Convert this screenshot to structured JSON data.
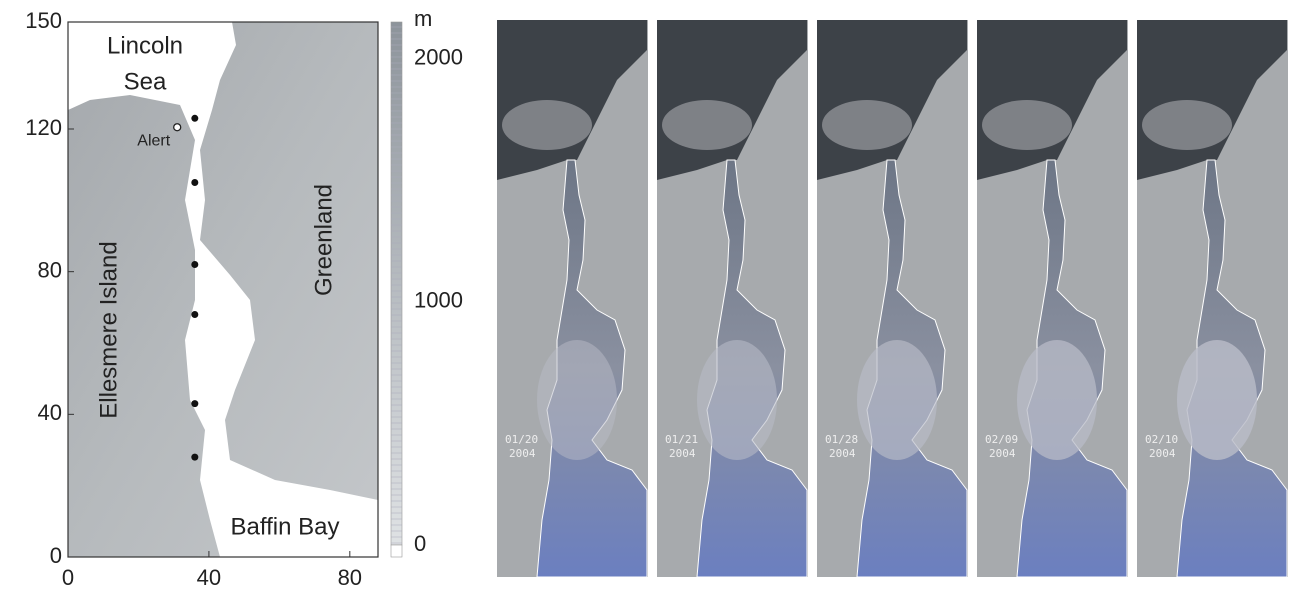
{
  "map": {
    "xlim": [
      0,
      88
    ],
    "ylim": [
      0,
      150
    ],
    "xticks": [
      0,
      40,
      80
    ],
    "yticks": [
      0,
      40,
      80,
      120,
      150
    ],
    "labels": [
      "Lincoln",
      "Sea",
      "Ellesmere Island",
      "Greenland",
      "Baffin Bay"
    ],
    "alert": {
      "label": "Alert",
      "x": 31,
      "y": 120.5
    },
    "stations": {
      "x": [
        36,
        36,
        36,
        36,
        36,
        36
      ],
      "y": [
        123,
        105,
        82,
        68,
        43,
        28
      ]
    }
  },
  "colorbar": {
    "unit": "m",
    "lim": [
      0,
      2150
    ],
    "ticks": [
      0,
      1000,
      2000
    ]
  },
  "panels": [
    {
      "date": "01/20",
      "year": "2004"
    },
    {
      "date": "01/21",
      "year": "2004"
    },
    {
      "date": "01/28",
      "year": "2004"
    },
    {
      "date": "02/09",
      "year": "2004"
    },
    {
      "date": "02/10",
      "year": "2004"
    }
  ]
}
